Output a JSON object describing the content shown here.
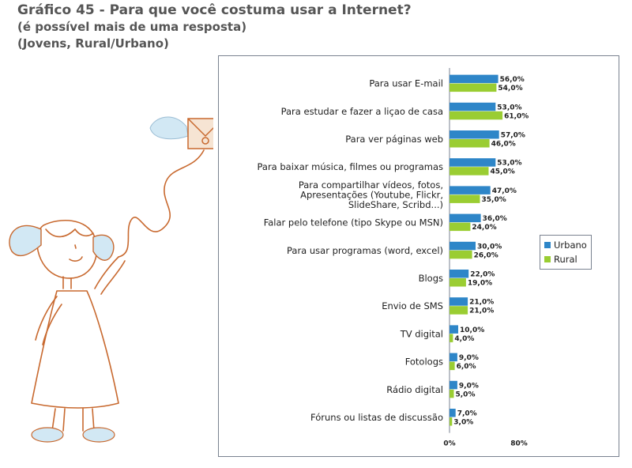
{
  "header": {
    "title": "Gráfico 45 - Para que você costuma usar a Internet?",
    "subtitle_1": "(é possível mais de uma resposta)",
    "subtitle_2": "(Jovens, Rural/Urbano)"
  },
  "colors": {
    "urbano": "#2e86c8",
    "rural": "#9acd32"
  },
  "chart_data": {
    "type": "bar",
    "orientation": "horizontal",
    "categories": [
      [
        "Para usar E-mail"
      ],
      [
        "Para estudar e fazer a liçao de casa"
      ],
      [
        "Para ver páginas web"
      ],
      [
        "Para baixar música, filmes ou programas"
      ],
      [
        "Para compartilhar vídeos, fotos,",
        "Apresentações (Youtube, Flickr,",
        "SlideShare, Scribd...)"
      ],
      [
        "Falar pelo telefone (tipo Skype ou MSN)"
      ],
      [
        "Para usar programas (word, excel)"
      ],
      [
        "Blogs"
      ],
      [
        "Envio de SMS"
      ],
      [
        "TV digital"
      ],
      [
        "Fotologs"
      ],
      [
        "Rádio digital"
      ],
      [
        "Fóruns ou listas de discussão"
      ]
    ],
    "series": [
      {
        "name": "Urbano",
        "values": [
          56,
          53,
          57,
          53,
          47,
          36,
          30,
          22,
          21,
          10,
          9,
          9,
          7
        ],
        "labels": [
          "56,0%",
          "53,0%",
          "57,0%",
          "53,0%",
          "47,0%",
          "36,0%",
          "30,0%",
          "22,0%",
          "21,0%",
          "10,0%",
          "9,0%",
          "9,0%",
          "7,0%"
        ]
      },
      {
        "name": "Rural",
        "values": [
          54,
          61,
          46,
          45,
          35,
          24,
          26,
          19,
          21,
          4,
          6,
          5,
          3
        ],
        "labels": [
          "54,0%",
          "61,0%",
          "46,0%",
          "45,0%",
          "35,0%",
          "24,0%",
          "26,0%",
          "19,0%",
          "21,0%",
          "4,0%",
          "6,0%",
          "5,0%",
          "3,0%"
        ]
      }
    ],
    "xlim": [
      0,
      80
    ],
    "xticks": [
      "0%",
      "80%"
    ],
    "legend": "right",
    "grid": false
  }
}
